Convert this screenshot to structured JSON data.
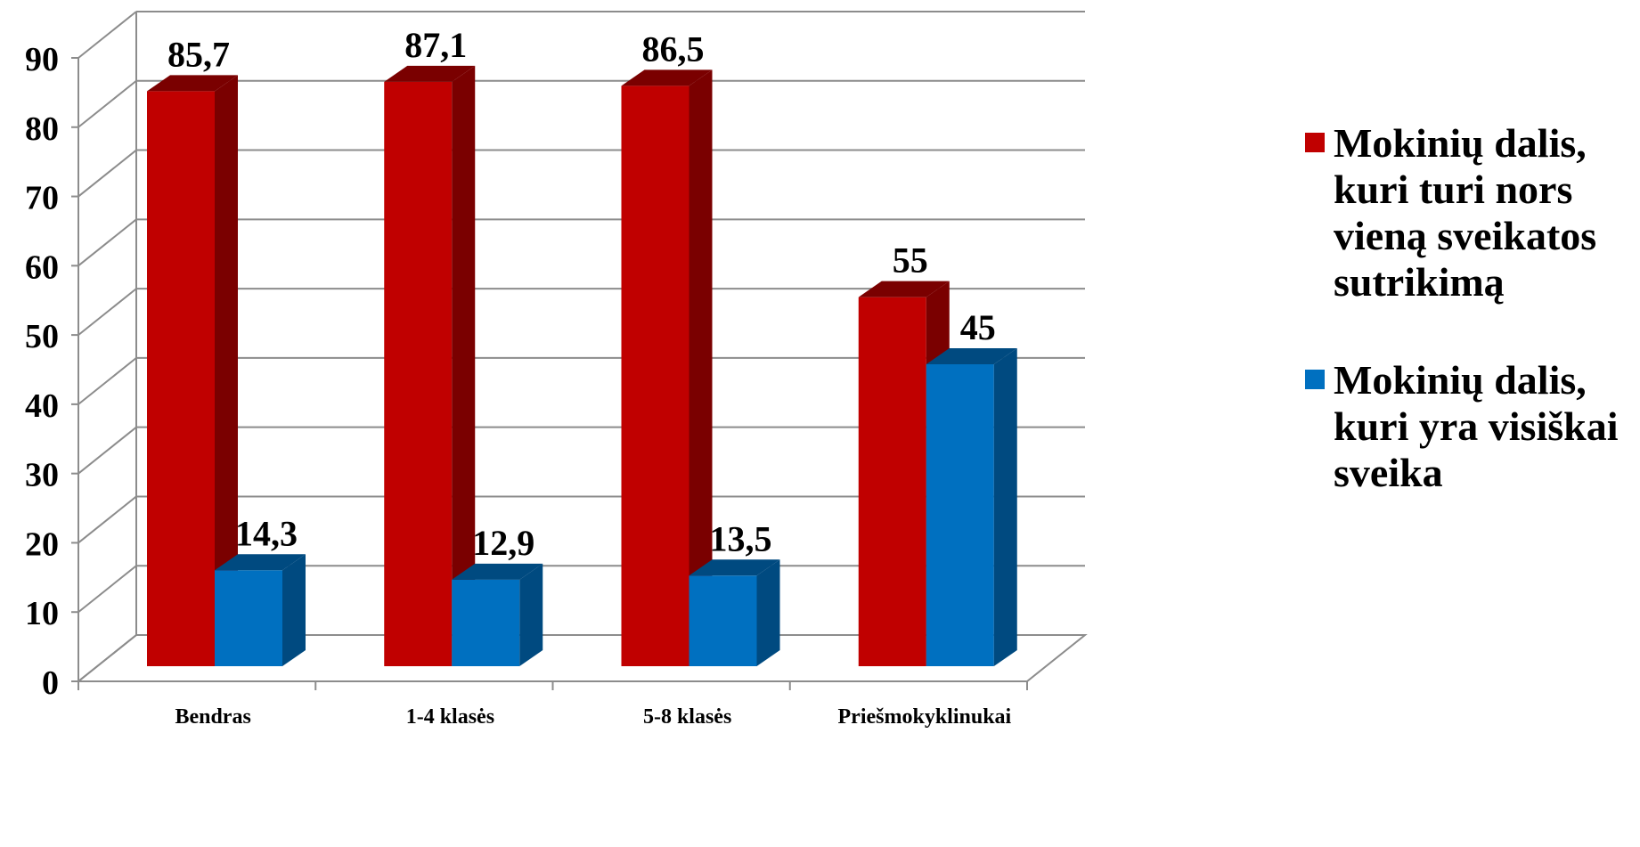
{
  "chart_data": {
    "type": "bar",
    "categories": [
      "Bendras",
      "1-4 klasės",
      "5-8 klasės",
      "Priešmokyklinukai"
    ],
    "series": [
      {
        "name": "Mokinių dalis, kuri turi nors vieną sveikatos sutrikimą",
        "values": [
          85.7,
          87.1,
          86.5,
          55
        ],
        "labels": [
          "85,7",
          "87,1",
          "86,5",
          "55"
        ],
        "color": "#c00000",
        "side_color": "#7a0000"
      },
      {
        "name": "Mokinių dalis, kuri yra visiškai sveika",
        "values": [
          14.3,
          12.9,
          13.5,
          45
        ],
        "labels": [
          "14,3",
          "12,9",
          "13,5",
          "45"
        ],
        "color": "#0070c0",
        "side_color": "#004a80"
      }
    ],
    "ylim": [
      0,
      90
    ],
    "yticks": [
      "0",
      "10",
      "20",
      "30",
      "40",
      "50",
      "60",
      "70",
      "80",
      "90"
    ],
    "grid": true,
    "legend_position": "right"
  }
}
